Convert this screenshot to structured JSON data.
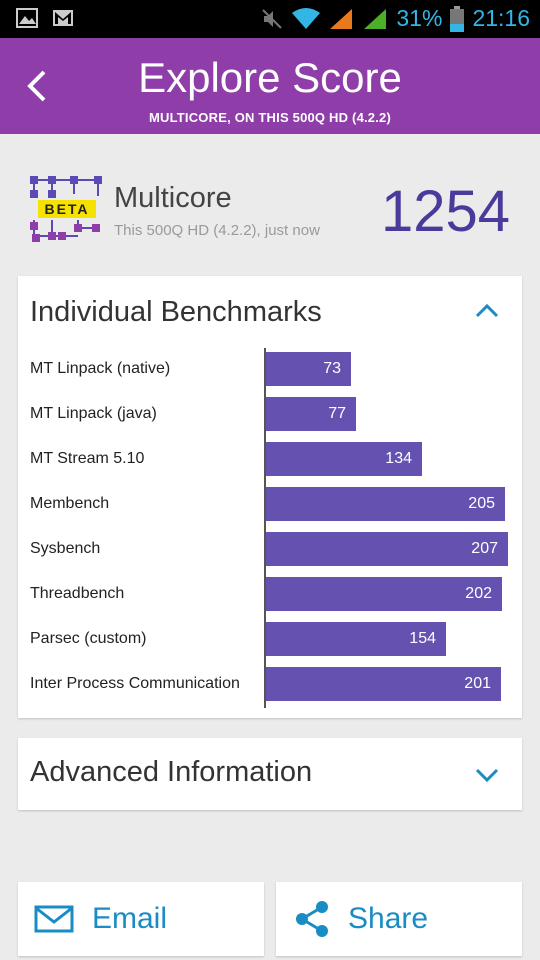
{
  "status": {
    "battery": "31%",
    "time": "21:16"
  },
  "appbar": {
    "title": "Explore Score",
    "subtitle": "MULTICORE, ON THIS 500Q HD (4.2.2)"
  },
  "header": {
    "badge": "BETA",
    "name": "Multicore",
    "sub": "This 500Q HD (4.2.2), just now",
    "score": "1254"
  },
  "benchmarks": {
    "title": "Individual Benchmarks",
    "items": [
      {
        "label": "MT Linpack (native)",
        "value": 73
      },
      {
        "label": "MT Linpack (java)",
        "value": 77
      },
      {
        "label": "MT Stream 5.10",
        "value": 134
      },
      {
        "label": "Membench",
        "value": 205
      },
      {
        "label": "Sysbench",
        "value": 207
      },
      {
        "label": "Threadbench",
        "value": 202
      },
      {
        "label": "Parsec (custom)",
        "value": 154
      },
      {
        "label": "Inter Process Communication",
        "value": 201
      }
    ]
  },
  "chart_data": {
    "type": "bar",
    "categories": [
      "MT Linpack (native)",
      "MT Linpack (java)",
      "MT Stream 5.10",
      "Membench",
      "Sysbench",
      "Threadbench",
      "Parsec (custom)",
      "Inter Process Communication"
    ],
    "values": [
      73,
      77,
      134,
      205,
      207,
      202,
      154,
      201
    ]
  },
  "advanced": {
    "title": "Advanced Information"
  },
  "actions": {
    "email": "Email",
    "share": "Share"
  },
  "colors": {
    "appbar": "#8e3da9",
    "bar": "#6552b0",
    "accent": "#1a8cc4",
    "score": "#4b3a9c"
  }
}
